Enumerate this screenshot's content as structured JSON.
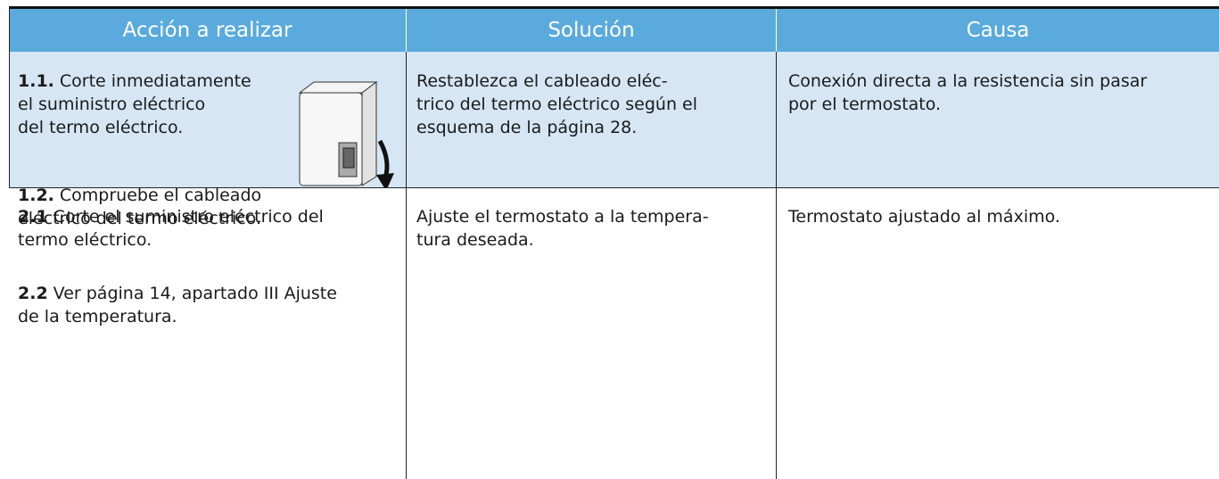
{
  "table": {
    "header": [
      "Acción a realizar",
      "Solución",
      "Causa"
    ],
    "rows": [
      {
        "action": [
          {
            "num": "1.1.",
            "lines": [
              "Corte inmediatamente",
              "el suministro eléctrico",
              "del termo eléctrico."
            ]
          },
          {
            "num": "1.2.",
            "lines": [
              "Compruebe el cableado",
              "eléctrico del termo eléctrico."
            ]
          }
        ],
        "solution": [
          "Restablezca el cableado eléc-",
          "trico del termo eléctrico según el",
          "esquema de la página 28."
        ],
        "cause": [
          "Conexión directa a la resistencia sin pasar",
          "por el termostato."
        ]
      },
      {
        "action": [
          {
            "num": "2.1",
            "lines": [
              "Corte el suministro eléctrico del",
              "termo eléctrico."
            ]
          },
          {
            "num": "2.2",
            "lines": [
              "Ver página 14, apartado III Ajuste",
              "de la temperatura."
            ]
          }
        ],
        "solution": [
          "Ajuste el termostato a la tempera-",
          "tura deseada."
        ],
        "cause": [
          "Termostato ajustado al máximo."
        ]
      }
    ]
  }
}
